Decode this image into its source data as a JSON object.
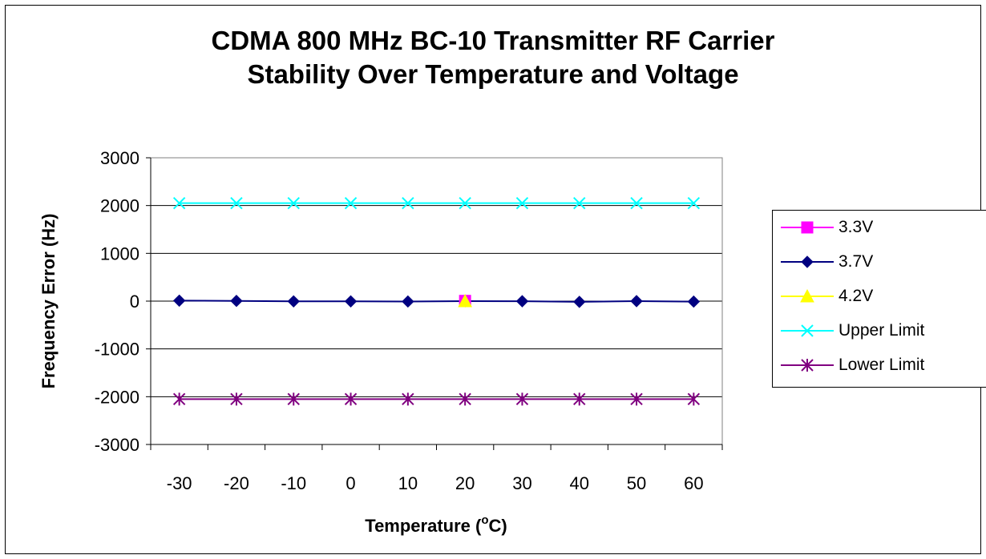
{
  "chart_data": {
    "type": "line",
    "title": [
      "CDMA 800 MHz BC-10 Transmitter RF Carrier",
      "Stability Over Temperature and Voltage"
    ],
    "xlabel": "Temperature (",
    "xlabel_sup": "o",
    "xlabel_end": "C)",
    "ylabel": "Frequency Error (Hz)",
    "ylim": [
      -3000,
      3000
    ],
    "yticks": [
      3000,
      2000,
      1000,
      0,
      -1000,
      -2000,
      -3000
    ],
    "categories": [
      "-30",
      "-20",
      "-10",
      "0",
      "10",
      "20",
      "30",
      "40",
      "50",
      "60"
    ],
    "grid": "horizontal major",
    "legend": "right",
    "series": [
      {
        "name": "3.3V",
        "color": "#ff00ff",
        "marker": "square",
        "values": [
          null,
          null,
          null,
          null,
          null,
          5,
          null,
          null,
          null,
          null
        ]
      },
      {
        "name": "3.7V",
        "color": "#000080",
        "marker": "diamond",
        "values": [
          10,
          5,
          -5,
          -5,
          -8,
          0,
          -2,
          -15,
          0,
          -10
        ]
      },
      {
        "name": "4.2V",
        "color": "#ffff00",
        "marker": "triangle",
        "values": [
          null,
          null,
          null,
          null,
          null,
          0,
          null,
          null,
          null,
          null
        ]
      },
      {
        "name": "Upper Limit",
        "color": "#00ffff",
        "marker": "x",
        "values": [
          2050,
          2050,
          2050,
          2050,
          2050,
          2050,
          2050,
          2050,
          2050,
          2050
        ]
      },
      {
        "name": "Lower Limit",
        "color": "#800080",
        "marker": "star",
        "values": [
          -2050,
          -2050,
          -2050,
          -2050,
          -2050,
          -2050,
          -2050,
          -2050,
          -2050,
          -2050
        ]
      }
    ]
  }
}
